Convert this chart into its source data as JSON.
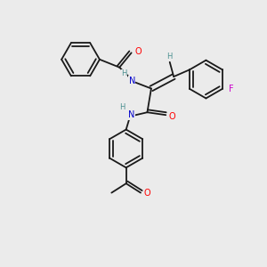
{
  "bg_color": "#ebebeb",
  "bond_color": "#1a1a1a",
  "atom_colors": {
    "O": "#ff0000",
    "N": "#0000cc",
    "F": "#cc00cc",
    "H": "#4a9090",
    "C": "#1a1a1a"
  }
}
